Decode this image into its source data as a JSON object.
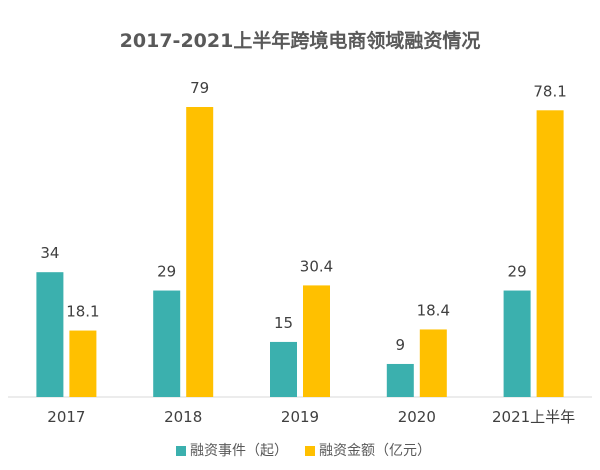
{
  "chart_data": {
    "type": "bar",
    "title": "2017-2021上半年跨境电商领域融资情况",
    "categories": [
      "2017",
      "2018",
      "2019",
      "2020",
      "2021上半年"
    ],
    "series": [
      {
        "name": "融资事件（起）",
        "values": [
          34,
          29,
          15,
          9,
          29
        ],
        "color": "#3BB0AE"
      },
      {
        "name": "融资金额（亿元）",
        "values": [
          18.1,
          79,
          30.4,
          18.4,
          78.1
        ],
        "color": "#FFC000"
      }
    ],
    "data_labels": [
      [
        "34",
        "29",
        "15",
        "9",
        "29"
      ],
      [
        "18.1",
        "79",
        "30.4",
        "18.4",
        "78.1"
      ]
    ],
    "xlabel": "",
    "ylabel": "",
    "ylim": [
      0,
      79
    ],
    "grid": false,
    "legend_position": "bottom",
    "axis_color": "#D9D9D9"
  }
}
